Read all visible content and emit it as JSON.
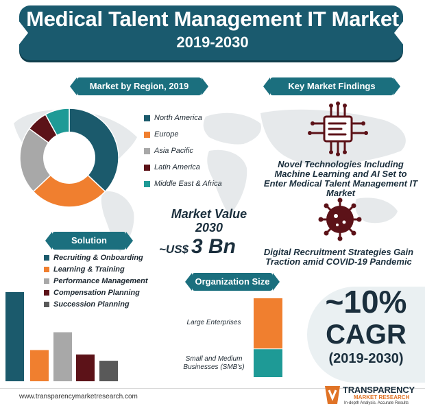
{
  "header": {
    "title": "Medical Talent Management IT Market",
    "subtitle": "2019-2030"
  },
  "colors": {
    "teal_dark": "#1b5a6c",
    "orange": "#f07f2f",
    "gray": "#a8a8a8",
    "maroon": "#5c1218",
    "teal_light": "#1e9a96",
    "dark_gray": "#595959",
    "banner": "#1a5a6e"
  },
  "region_section": {
    "label": "Market by Region, 2019"
  },
  "findings_section": {
    "label": "Key Market Findings"
  },
  "findings": [
    {
      "text": "Novel Technologies Including Machine Learning and AI Set to Enter Medical Talent Management IT Market",
      "icon": "ai-chip-icon"
    },
    {
      "text": "Digital Recruitment Strategies Gain Traction amid COVID-19 Pandemic",
      "icon": "virus-icon"
    }
  ],
  "market_value": {
    "label": "Market Value 2030",
    "prefix": "~US$",
    "value": "3 Bn"
  },
  "solution_section": {
    "label": "Solution"
  },
  "org_section": {
    "label": "Organization Size"
  },
  "cagr": {
    "value": "~10%",
    "label": "CAGR",
    "period": "(2019-2030)"
  },
  "footer": {
    "url": "www.transparencymarketresearch.com"
  },
  "logo": {
    "name": "TRANSPARENCY",
    "sub": "MARKET RESEARCH",
    "tagline": "In-depth Analysis. Accurate Results"
  },
  "chart_data": [
    {
      "type": "pie",
      "title": "Market by Region, 2019",
      "categories": [
        "North America",
        "Europe",
        "Asia Pacific",
        "Latin America",
        "Middle East & Africa"
      ],
      "values": [
        37,
        26,
        22,
        7,
        8
      ],
      "colors": [
        "#1b5a6c",
        "#f07f2f",
        "#a8a8a8",
        "#5c1218",
        "#1e9a96"
      ],
      "legend": "right"
    },
    {
      "type": "bar",
      "title": "Solution",
      "categories": [
        "Recruiting & Onboarding",
        "Learning & Training",
        "Performance Management",
        "Compensation Planning",
        "Succession Planning"
      ],
      "values": [
        100,
        35,
        55,
        30,
        23
      ],
      "colors": [
        "#1b5a6c",
        "#f07f2f",
        "#a8a8a8",
        "#5c1218",
        "#595959"
      ],
      "legend": "top"
    },
    {
      "type": "bar",
      "title": "Organization Size",
      "categories": [
        "Large Enterprises",
        "Small and Medium Businesses (SMB's)"
      ],
      "values": [
        64,
        36
      ],
      "colors": [
        "#f07f2f",
        "#1e9a96"
      ],
      "stacked": true
    }
  ]
}
